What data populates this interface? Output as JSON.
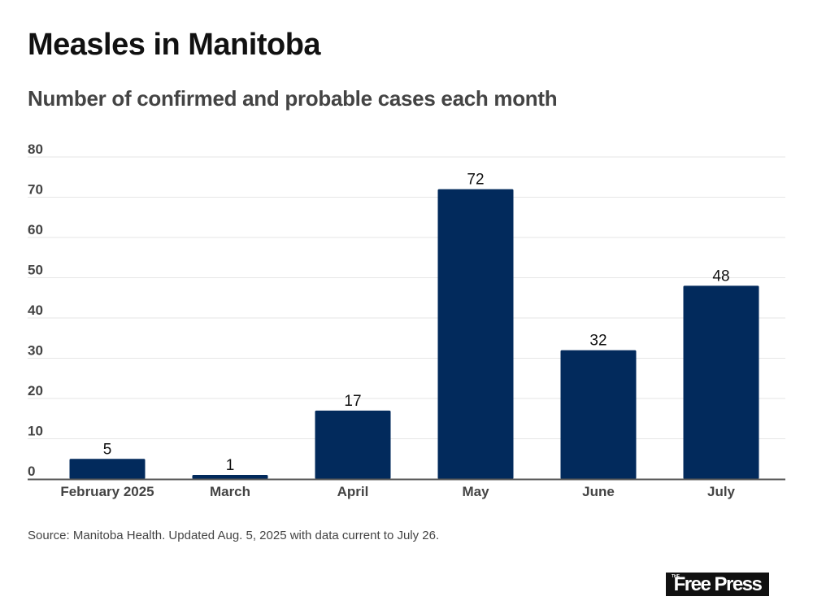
{
  "header": {
    "title": "Measles in Manitoba",
    "subtitle": "Number of confirmed and probable cases each month"
  },
  "footer": {
    "source": "Source: Manitoba Health. Updated Aug. 5, 2025 with data current to July 26.",
    "logo_small": "THE",
    "logo_text": "Free Press"
  },
  "colors": {
    "bar": "#022a5c",
    "grid": "#e6e6e6",
    "axis": "#555555",
    "tick_label": "#444444",
    "value_label": "#111111"
  },
  "chart_data": {
    "type": "bar",
    "title": "Measles in Manitoba",
    "subtitle": "Number of confirmed and probable cases each month",
    "xlabel": "",
    "ylabel": "",
    "categories": [
      "February 2025",
      "March",
      "April",
      "May",
      "June",
      "July"
    ],
    "values": [
      5,
      1,
      17,
      72,
      32,
      48
    ],
    "ylim": [
      0,
      80
    ],
    "yticks": [
      0,
      10,
      20,
      30,
      40,
      50,
      60,
      70,
      80
    ],
    "grid": true,
    "legend": "none",
    "data_labels": true
  }
}
